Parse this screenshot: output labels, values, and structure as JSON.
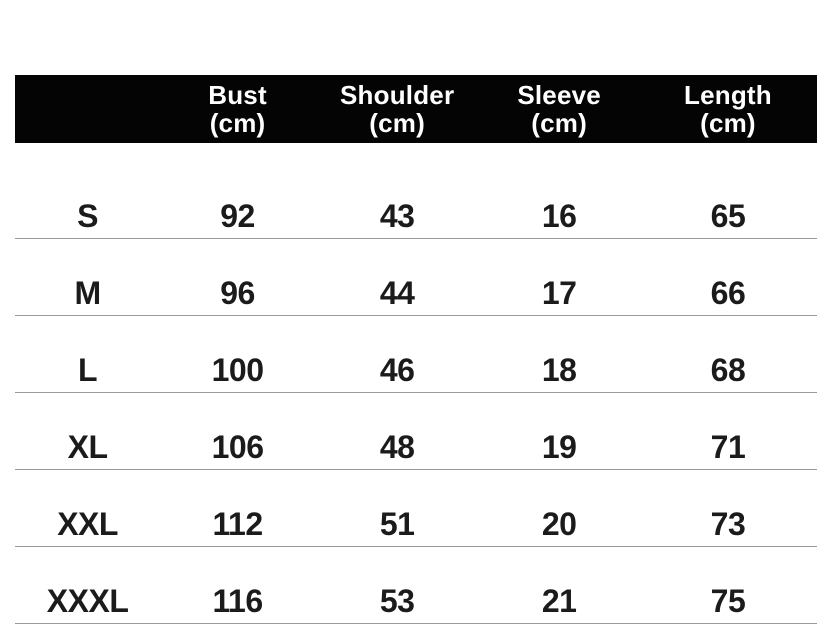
{
  "table": {
    "columns": [
      {
        "label": "",
        "unit": ""
      },
      {
        "label": "Bust",
        "unit": "(cm)"
      },
      {
        "label": "Shoulder",
        "unit": "(cm)"
      },
      {
        "label": "Sleeve",
        "unit": "(cm)"
      },
      {
        "label": "Length",
        "unit": "(cm)"
      }
    ],
    "rows": [
      {
        "size": "S",
        "bust": "92",
        "shoulder": "43",
        "sleeve": "16",
        "length": "65"
      },
      {
        "size": "M",
        "bust": "96",
        "shoulder": "44",
        "sleeve": "17",
        "length": "66"
      },
      {
        "size": "L",
        "bust": "100",
        "shoulder": "46",
        "sleeve": "18",
        "length": "68"
      },
      {
        "size": "XL",
        "bust": "106",
        "shoulder": "48",
        "sleeve": "19",
        "length": "71"
      },
      {
        "size": "XXL",
        "bust": "112",
        "shoulder": "51",
        "sleeve": "20",
        "length": "73"
      },
      {
        "size": "XXXL",
        "bust": "116",
        "shoulder": "53",
        "sleeve": "21",
        "length": "75"
      }
    ]
  },
  "colors": {
    "background": "#ffffff",
    "header_bg": "#040404",
    "header_text": "#ffffff",
    "body_text": "#1b1b1b",
    "divider": "#9a9a9a"
  },
  "chart_data": {
    "type": "table",
    "title": "",
    "columns": [
      "",
      "Bust (cm)",
      "Shoulder (cm)",
      "Sleeve (cm)",
      "Length (cm)"
    ],
    "rows": [
      [
        "S",
        92,
        43,
        16,
        65
      ],
      [
        "M",
        96,
        44,
        17,
        66
      ],
      [
        "L",
        100,
        46,
        18,
        68
      ],
      [
        "XL",
        106,
        48,
        19,
        71
      ],
      [
        "XXL",
        112,
        51,
        20,
        73
      ],
      [
        "XXXL",
        116,
        53,
        21,
        75
      ]
    ],
    "layout_hints": {
      "header_style": "black bar, white bold text, unit on second line",
      "row_dividers": "thin gray horizontal rules",
      "first_column_header": "blank"
    }
  }
}
